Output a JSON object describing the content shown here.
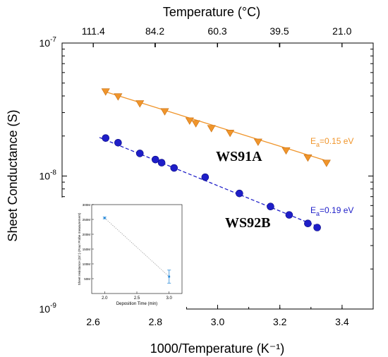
{
  "chart_data": [
    {
      "type": "scatter",
      "title": "",
      "xlabel": "1000/Temperature (K⁻¹)",
      "ylabel": "Sheet Conductance (S)",
      "top_xlabel": "Temperature  (°C)",
      "xlim": [
        2.5,
        3.5
      ],
      "ylim": [
        1e-09,
        1e-07
      ],
      "yscale": "log",
      "x_ticks": [
        "2.6",
        "2.8",
        "3.0",
        "3.2",
        "3.4"
      ],
      "y_ticks": [
        "10-9",
        "10-8",
        "10-7"
      ],
      "top_ticks": [
        "111.4",
        "84.2",
        "60.3",
        "39.5",
        "21.0"
      ],
      "grid": false,
      "series": [
        {
          "name": "WS91A",
          "color": "#f0952b",
          "marker": "triangle-down",
          "annotation": "Ea=0.15 eV",
          "fit": {
            "x": [
              2.64,
              3.36
            ],
            "y": [
              4.3e-08,
              1.28e-08
            ]
          },
          "x": [
            2.64,
            2.68,
            2.75,
            2.83,
            2.91,
            2.93,
            2.98,
            3.04,
            3.13,
            3.22,
            3.29,
            3.35
          ],
          "y": [
            4.3e-08,
            3.95e-08,
            3.5e-08,
            3.05e-08,
            2.6e-08,
            2.48e-08,
            2.28e-08,
            2.1e-08,
            1.8e-08,
            1.55e-08,
            1.37e-08,
            1.25e-08
          ]
        },
        {
          "name": "WS92B",
          "color": "#1e1ec8",
          "marker": "circle",
          "annotation": "Ea=0.19 eV",
          "fit": {
            "x": [
              2.62,
              3.33
            ],
            "y": [
              1.95e-08,
              4.1e-09
            ]
          },
          "x": [
            2.64,
            2.68,
            2.75,
            2.8,
            2.82,
            2.86,
            2.96,
            3.07,
            3.17,
            3.23,
            3.29,
            3.32
          ],
          "y": [
            1.93e-08,
            1.78e-08,
            1.48e-08,
            1.33e-08,
            1.26e-08,
            1.15e-08,
            9.8e-09,
            7.4e-09,
            5.9e-09,
            5.1e-09,
            4.4e-09,
            4.1e-09
          ]
        }
      ]
    },
    {
      "type": "scatter",
      "title": "",
      "xlabel": "Deposition Time (min)",
      "ylabel": "Sheet resistance (Ω/□) (Four Probe measurement)",
      "xlim": [
        1.8,
        3.2
      ],
      "ylim": [
        0,
        300
      ],
      "x_ticks": [
        "2.0",
        "2.5",
        "3.0"
      ],
      "y_ticks": [
        "50M",
        "100M",
        "150M",
        "200M",
        "250M",
        "300M"
      ],
      "series": [
        {
          "color": "#2a8ad8",
          "x": [
            2.0,
            3.0
          ],
          "y": [
            255,
            57
          ],
          "error": [
            3,
            22
          ]
        }
      ]
    }
  ]
}
